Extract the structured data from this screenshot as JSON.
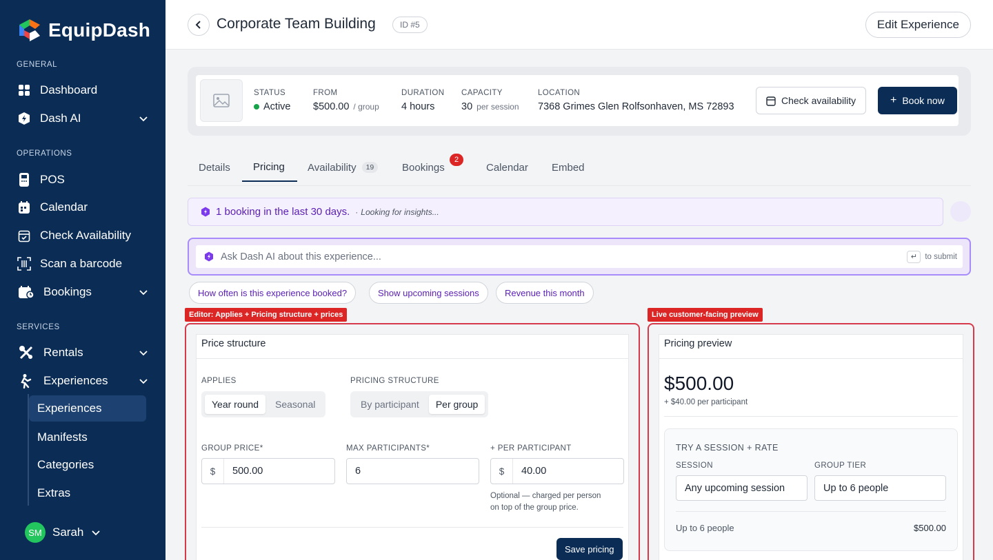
{
  "brand": {
    "name": "EquipDash"
  },
  "sidebar": {
    "sections": {
      "general": "GENERAL",
      "operations": "OPERATIONS",
      "services": "SERVICES"
    },
    "items": {
      "dashboard": "Dashboard",
      "dash_ai": "Dash AI",
      "pos": "POS",
      "calendar": "Calendar",
      "check_availability": "Check Availability",
      "scan_barcode": "Scan a barcode",
      "bookings": "Bookings",
      "rentals": "Rentals",
      "experiences": "Experiences"
    },
    "sub_items": [
      "Experiences",
      "Manifests",
      "Categories",
      "Extras"
    ],
    "user": {
      "initials": "SM",
      "name": "Sarah"
    }
  },
  "header": {
    "title": "Corporate Team Building",
    "id_badge": "ID #5",
    "edit_button": "Edit Experience"
  },
  "summary": {
    "status": {
      "label": "STATUS",
      "value": "Active"
    },
    "from": {
      "label": "FROM",
      "value": "$500.00",
      "unit": "/ group"
    },
    "duration": {
      "label": "DURATION",
      "value": "4 hours"
    },
    "capacity": {
      "label": "CAPACITY",
      "value": "30",
      "unit": "per session"
    },
    "location": {
      "label": "LOCATION",
      "value": "7368 Grimes Glen Rolfsonhaven, MS 72893"
    },
    "check_availability": "Check availability",
    "book_now": "Book now"
  },
  "tabs": [
    {
      "label": "Details"
    },
    {
      "label": "Pricing",
      "active": true
    },
    {
      "label": "Availability",
      "count": "19"
    },
    {
      "label": "Bookings",
      "badge": "2"
    },
    {
      "label": "Calendar"
    },
    {
      "label": "Embed"
    }
  ],
  "insight": {
    "text": "1 booking in the last 30 days.",
    "separator": "·",
    "sub": "Looking for insights..."
  },
  "ask": {
    "placeholder": "Ask Dash AI about this experience...",
    "hint": "to submit",
    "key": "↵"
  },
  "chips": [
    "How often is this experience booked?",
    "Show upcoming sessions",
    "Revenue this month"
  ],
  "editor": {
    "tag": "Editor: Applies + Pricing structure + prices",
    "title": "Price structure",
    "applies_label": "APPLIES",
    "applies_options": [
      "Year round",
      "Seasonal"
    ],
    "structure_label": "PRICING STRUCTURE",
    "structure_options": [
      "By participant",
      "Per group"
    ],
    "group_price_label": "GROUP PRICE*",
    "group_price_value": "500.00",
    "max_participants_label": "MAX PARTICIPANTS*",
    "max_participants_value": "6",
    "per_participant_label": "+ PER PARTICIPANT",
    "per_participant_value": "40.00",
    "currency": "$",
    "help_line1": "Optional — charged per person",
    "help_line2": "on top of the group price.",
    "save": "Save pricing"
  },
  "preview": {
    "tag": "Live customer-facing preview",
    "title": "Pricing preview",
    "price": "$500.00",
    "sub": "+ $40.00 per participant",
    "try_title": "TRY A SESSION + RATE",
    "session_label": "SESSION",
    "session_value": "Any upcoming session",
    "tier_label": "GROUP TIER",
    "tier_value": "Up to 6 people",
    "row_label": "Up to 6 people",
    "row_amount": "$500.00"
  },
  "colors": {
    "sidebar": "#0b2d55",
    "accent_purple": "#5b21b6",
    "danger": "#dc2626",
    "success": "#16a34a"
  }
}
